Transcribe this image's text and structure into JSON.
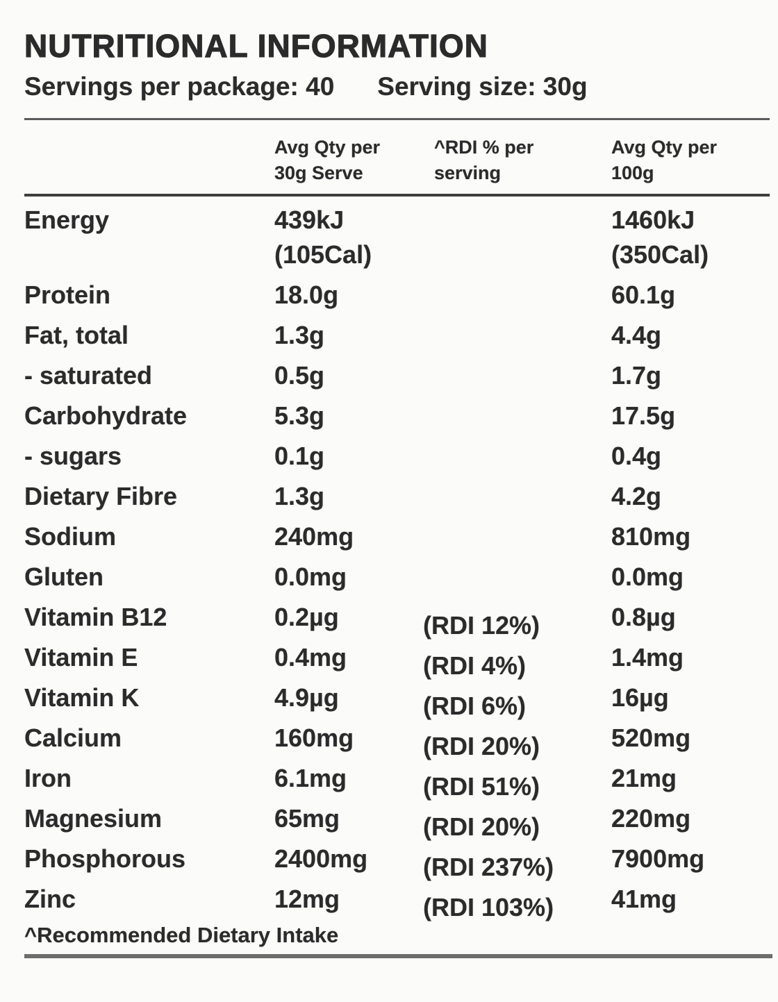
{
  "page": {
    "background_color": "#fbfbfa",
    "text_color": "#2b2b2b",
    "rule_color": "#585858"
  },
  "label": {
    "title": "NUTRITIONAL INFORMATION",
    "servings_per_package": "Servings per package: 40",
    "serving_size": "Serving size: 30g",
    "header": {
      "qty_per_serve": "Avg Qty per\n30g Serve",
      "rdi_per_serving": "^RDI % per\nserving",
      "qty_per_100g": "Avg Qty per\n100g"
    },
    "rows": [
      {
        "name": "Energy",
        "per_serve": "439kJ\n(105Cal)",
        "rdi": "",
        "per_100g": "1460kJ\n(350Cal)"
      },
      {
        "name": "Protein",
        "per_serve": "18.0g",
        "rdi": "",
        "per_100g": "60.1g"
      },
      {
        "name": "Fat, total",
        "per_serve": "1.3g",
        "rdi": "",
        "per_100g": "4.4g"
      },
      {
        "name": "- saturated",
        "per_serve": "0.5g",
        "rdi": "",
        "per_100g": "1.7g"
      },
      {
        "name": "Carbohydrate",
        "per_serve": "5.3g",
        "rdi": "",
        "per_100g": "17.5g"
      },
      {
        "name": "- sugars",
        "per_serve": "0.1g",
        "rdi": "",
        "per_100g": "0.4g"
      },
      {
        "name": "Dietary Fibre",
        "per_serve": "1.3g",
        "rdi": "",
        "per_100g": "4.2g"
      },
      {
        "name": "Sodium",
        "per_serve": "240mg",
        "rdi": "",
        "per_100g": "810mg"
      },
      {
        "name": "Gluten",
        "per_serve": "0.0mg",
        "rdi": "",
        "per_100g": "0.0mg"
      },
      {
        "name": "Vitamin B12",
        "per_serve": "0.2µg",
        "rdi": "(RDI 12%)",
        "per_100g": "0.8µg"
      },
      {
        "name": "Vitamin E",
        "per_serve": "0.4mg",
        "rdi": "(RDI 4%)",
        "per_100g": "1.4mg"
      },
      {
        "name": "Vitamin K",
        "per_serve": "4.9µg",
        "rdi": "(RDI 6%)",
        "per_100g": "16µg"
      },
      {
        "name": "Calcium",
        "per_serve": "160mg",
        "rdi": "(RDI 20%)",
        "per_100g": "520mg"
      },
      {
        "name": "Iron",
        "per_serve": "6.1mg",
        "rdi": "(RDI 51%)",
        "per_100g": "21mg"
      },
      {
        "name": "Magnesium",
        "per_serve": "65mg",
        "rdi": "(RDI 20%)",
        "per_100g": "220mg"
      },
      {
        "name": "Phosphorous",
        "per_serve": "2400mg",
        "rdi": "(RDI 237%)",
        "per_100g": "7900mg"
      },
      {
        "name": "Zinc",
        "per_serve": "12mg",
        "rdi": "(RDI 103%)",
        "per_100g": "41mg"
      }
    ],
    "footnote": "^Recommended Dietary Intake"
  }
}
